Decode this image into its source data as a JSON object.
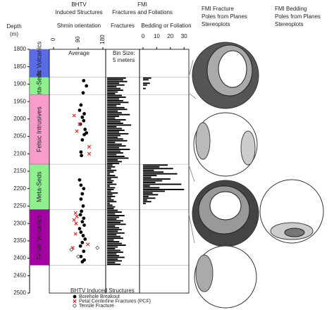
{
  "header": {
    "bhtv_title": "BHTV",
    "bhtv_subtitle": "Induced Structures",
    "bhtv_axis_label": "Shmin orientation",
    "fmi_title": "FMI",
    "fmi_subtitle": "Fractures and Foliations",
    "stereo_fracture_title": [
      "FMI Fracture",
      "Poles from Planes",
      "Stereoplots"
    ],
    "stereo_bedding_title": [
      "FMI Bedding",
      "Poles from Planes",
      "Stereoplots"
    ]
  },
  "depth_axis": {
    "label": "Depth",
    "unit": "(m)",
    "lim": [
      1800,
      2500
    ],
    "ticks": [
      1800,
      1850,
      1900,
      1950,
      2000,
      2050,
      2100,
      2150,
      2200,
      2250,
      2300,
      2350,
      2400,
      2450,
      2500
    ]
  },
  "lithology": [
    {
      "name": "Mafic Volcanics",
      "top": 1800,
      "base": 1880,
      "color": "#5a6be6"
    },
    {
      "name": "Meta-Seds",
      "top": 1880,
      "base": 1930,
      "color": "#8ff08f"
    },
    {
      "name": "Felsic Intrusives",
      "top": 1930,
      "base": 2130,
      "color": "#f79ccb"
    },
    {
      "name": "Meta-Seds",
      "top": 2130,
      "base": 2260,
      "color": "#8ff08f"
    },
    {
      "name": "Felsic Volcanics",
      "top": 2260,
      "base": 2420,
      "color": "#a400a4"
    }
  ],
  "chart_data": [
    {
      "type": "scatter",
      "annotation": "Average",
      "xlim": [
        0,
        180
      ],
      "xticks": [
        0,
        90,
        180
      ],
      "legend_title": "BHTV Induced Structures",
      "series": [
        {
          "name": "Borehole Breakout",
          "color": "#000000",
          "marker": "circle",
          "y": [
            1890,
            1905,
            1925,
            1960,
            1975,
            1985,
            1995,
            2005,
            2015,
            2030,
            2040,
            2045,
            2060,
            2095,
            2105,
            2175,
            2190,
            2200,
            2215,
            2230,
            2250,
            2265,
            2275,
            2285,
            2295,
            2305,
            2315,
            2325,
            2335,
            2345,
            2355,
            2365,
            2380,
            2395,
            2405,
            2410
          ],
          "x": [
            110,
            120,
            108,
            100,
            95,
            112,
            105,
            110,
            98,
            115,
            120,
            112,
            105,
            100,
            102,
            95,
            100,
            110,
            105,
            100,
            108,
            102,
            98,
            110,
            105,
            112,
            95,
            100,
            108,
            115,
            105,
            98,
            110,
            100,
            112,
            105
          ]
        },
        {
          "name": "Petal Centerline Fractures (PCF)",
          "color": "#e02020",
          "marker": "x",
          "y": [
            1990,
            2015,
            2035,
            2080,
            2100,
            2270,
            2280,
            2290,
            2300,
            2330,
            2360,
            2370
          ],
          "x": [
            75,
            95,
            85,
            130,
            130,
            80,
            85,
            75,
            82,
            80,
            125,
            70
          ]
        },
        {
          "name": "Tensile Fracture",
          "color": "#555555",
          "marker": "diamond",
          "y": [
            2370,
            2375,
            2395
          ],
          "x": [
            160,
            65,
            90
          ]
        }
      ]
    },
    {
      "type": "histogram",
      "label": "Fractures",
      "annotation": [
        "Bin Size:",
        "5 meters"
      ],
      "xlim": [
        0,
        20
      ],
      "color": "#000000",
      "bins": [
        1880,
        1885,
        1890,
        1895,
        1900,
        1905,
        1910,
        1915,
        1920,
        1925,
        1930,
        1935,
        1940,
        1945,
        1950,
        1955,
        1960,
        1965,
        1970,
        1975,
        1980,
        1985,
        1990,
        1995,
        2000,
        2005,
        2010,
        2015,
        2020,
        2025,
        2030,
        2035,
        2040,
        2045,
        2050,
        2055,
        2060,
        2065,
        2070,
        2075,
        2080,
        2085,
        2090,
        2095,
        2100,
        2105,
        2110,
        2115,
        2120,
        2125,
        2130,
        2135,
        2140,
        2145,
        2150,
        2155,
        2160,
        2165,
        2170,
        2175,
        2180,
        2185,
        2190,
        2195,
        2200,
        2205,
        2210,
        2215,
        2220,
        2225,
        2230,
        2235,
        2240,
        2245,
        2250,
        2255,
        2260,
        2265,
        2270,
        2275,
        2280,
        2285,
        2290,
        2295,
        2300,
        2305,
        2310,
        2315,
        2320,
        2325,
        2330,
        2335,
        2340,
        2345,
        2350,
        2355,
        2360,
        2365,
        2370,
        2375,
        2380,
        2385,
        2390,
        2395,
        2400,
        2405,
        2410,
        2415,
        2420
      ],
      "values": [
        14,
        12,
        15,
        9,
        13,
        7,
        10,
        12,
        8,
        6,
        11,
        14,
        9,
        12,
        16,
        10,
        7,
        13,
        15,
        8,
        11,
        17,
        9,
        6,
        14,
        10,
        12,
        18,
        7,
        11,
        13,
        9,
        16,
        10,
        8,
        12,
        15,
        6,
        11,
        14,
        9,
        17,
        10,
        12,
        7,
        13,
        16,
        8,
        11,
        9,
        4,
        6,
        3,
        7,
        5,
        2,
        6,
        8,
        3,
        5,
        4,
        7,
        2,
        6,
        5,
        3,
        8,
        4,
        6,
        3,
        5,
        7,
        2,
        4,
        6,
        5,
        8,
        11,
        6,
        13,
        9,
        7,
        12,
        10,
        14,
        6,
        9,
        11,
        8,
        13,
        7,
        10,
        12,
        5,
        9,
        11,
        14,
        8,
        6,
        10,
        12,
        7,
        9,
        13,
        8,
        11,
        6,
        10
      ]
    },
    {
      "type": "histogram",
      "label": "Bedding or Foliation",
      "xlim": [
        0,
        34
      ],
      "xticks": [
        0,
        10,
        20,
        30
      ],
      "color": "#000000",
      "bins": [
        1880,
        1885,
        1890,
        1895,
        1900,
        1905,
        1910,
        1915,
        1920,
        1925,
        1930,
        1935,
        1940,
        1945,
        1950,
        1955,
        1960,
        1965,
        1970,
        1975,
        1980,
        1985,
        1990,
        1995,
        2000,
        2005,
        2010,
        2015,
        2020,
        2025,
        2030,
        2035,
        2040,
        2045,
        2050,
        2055,
        2060,
        2065,
        2070,
        2075,
        2080,
        2085,
        2090,
        2095,
        2100,
        2105,
        2110,
        2115,
        2120,
        2125,
        2130,
        2135,
        2140,
        2145,
        2150,
        2155,
        2160,
        2165,
        2170,
        2175,
        2180,
        2185,
        2190,
        2195,
        2200,
        2205,
        2210,
        2215,
        2220,
        2225,
        2230,
        2235,
        2240,
        2245,
        2250,
        2255,
        2260,
        2265,
        2270,
        2275,
        2280,
        2285,
        2290,
        2295,
        2300,
        2305,
        2310,
        2315,
        2320,
        2325,
        2330,
        2335,
        2340,
        2345,
        2350,
        2355,
        2360,
        2365,
        2370,
        2375,
        2380,
        2385,
        2390,
        2395,
        2400,
        2405,
        2410,
        2415,
        2420
      ],
      "values": [
        6,
        4,
        0,
        5,
        3,
        0,
        2,
        0,
        0,
        0,
        0,
        0,
        0,
        0,
        0,
        0,
        0,
        0,
        0,
        0,
        0,
        0,
        0,
        0,
        0,
        0,
        0,
        0,
        0,
        0,
        0,
        0,
        0,
        0,
        0,
        0,
        0,
        0,
        0,
        0,
        0,
        0,
        0,
        0,
        0,
        0,
        0,
        0,
        0,
        0,
        18,
        12,
        22,
        8,
        15,
        25,
        10,
        6,
        20,
        14,
        9,
        28,
        5,
        12,
        30,
        16,
        7,
        11,
        4,
        9,
        3,
        6,
        2,
        0,
        0,
        0,
        0,
        0,
        0,
        0,
        0,
        0,
        0,
        0,
        0,
        0,
        0,
        0,
        0,
        0,
        0,
        0,
        0,
        0,
        0,
        0,
        0,
        0,
        0,
        0,
        0,
        0,
        0,
        0,
        0,
        0,
        0,
        0
      ]
    }
  ]
}
